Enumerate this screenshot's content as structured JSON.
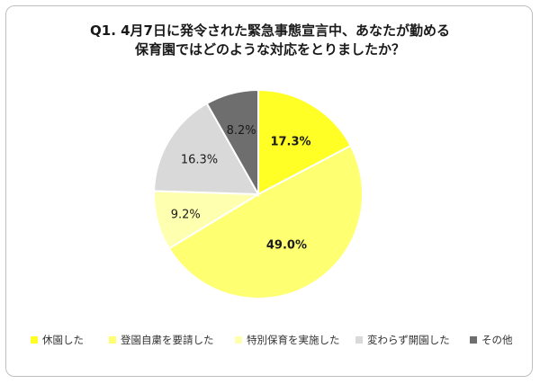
{
  "title": {
    "line1": "Q1. 4月7日に発令された緊急事態宣言中、あなたが勤める",
    "line2": "保育園ではどのような対応をとりましたか？"
  },
  "chart_data": {
    "type": "pie",
    "categories": [
      "休園した",
      "登園自粛を要請した",
      "特別保育を実施した",
      "変わらず開園した",
      "その他"
    ],
    "values": [
      17.3,
      49.0,
      9.2,
      16.3,
      8.2
    ],
    "value_labels": [
      "17.3%",
      "49.0%",
      "9.2%",
      "16.3%",
      "8.2%"
    ],
    "colors": [
      "#ffff26",
      "#ffff72",
      "#ffffb0",
      "#d9d9d9",
      "#6e6e6e"
    ],
    "start": "top, clockwise",
    "legend_position": "bottom"
  }
}
